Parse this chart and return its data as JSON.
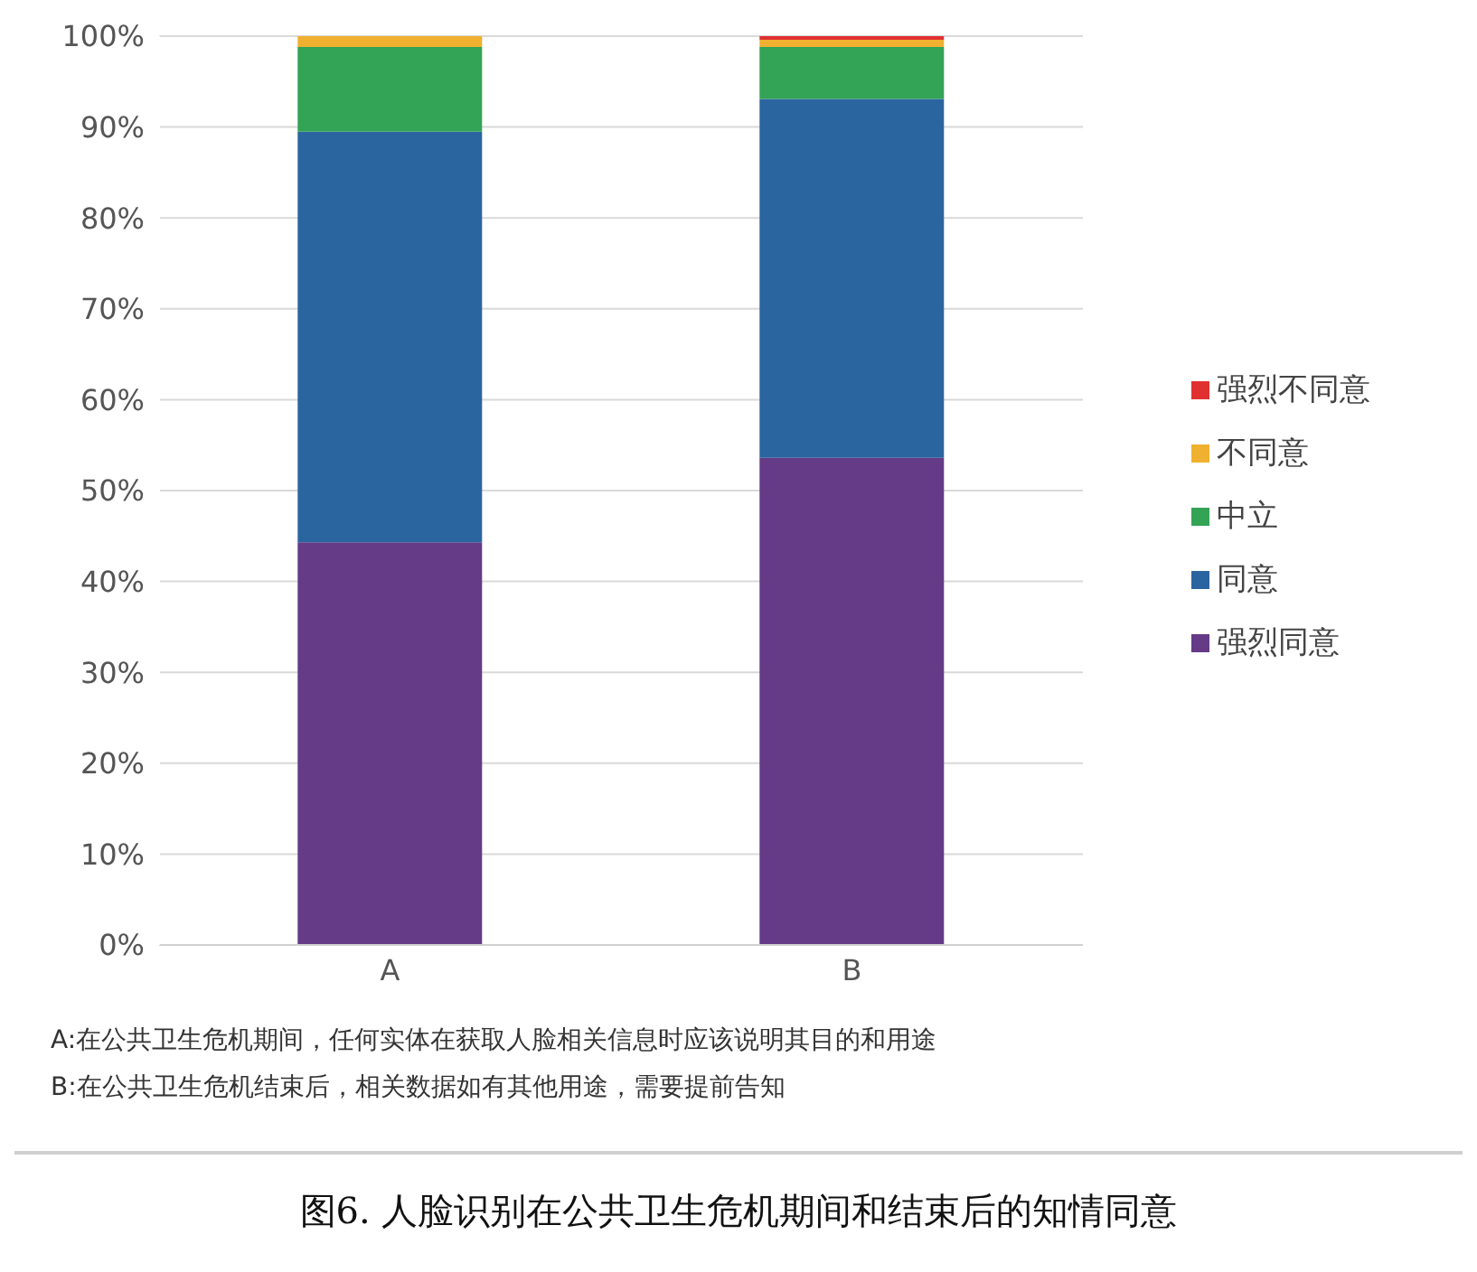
{
  "chart_data": {
    "type": "bar",
    "title": "图6.  人脸识别在公共卫生危机期间和结束后的知情同意",
    "categories": [
      "A",
      "B"
    ],
    "stacked": true,
    "series": [
      {
        "name": "强烈同意",
        "color": "#653a86",
        "values": [
          44.3,
          53.6
        ]
      },
      {
        "name": "同意",
        "color": "#2b65a0",
        "values": [
          45.2,
          39.5
        ]
      },
      {
        "name": "中立",
        "color": "#33a355",
        "values": [
          9.3,
          5.7
        ]
      },
      {
        "name": "不同意",
        "color": "#f0b030",
        "values": [
          1.2,
          0.8
        ]
      },
      {
        "name": "强烈不同意",
        "color": "#e03030",
        "values": [
          0,
          0.4
        ]
      }
    ],
    "ylim": [
      0,
      100
    ],
    "yticks": [
      {
        "value": 0,
        "label": "0%"
      },
      {
        "value": 10,
        "label": "10%"
      },
      {
        "value": 20,
        "label": "20%"
      },
      {
        "value": 30,
        "label": "30%"
      },
      {
        "value": 40,
        "label": "40%"
      },
      {
        "value": 50,
        "label": "50%"
      },
      {
        "value": 60,
        "label": "60%"
      },
      {
        "value": 70,
        "label": "70%"
      },
      {
        "value": 80,
        "label": "80%"
      },
      {
        "value": 90,
        "label": "90%"
      },
      {
        "value": 100,
        "label": "100%"
      }
    ],
    "grid": "y",
    "legend": "right",
    "annotations": [
      "A:在公共卫生危机期间，任何实体在获取人脸相关信息时应该说明其目的和用途",
      "B:在公共卫生危机结束后，相关数据如有其他用途，需要提前告知"
    ]
  }
}
